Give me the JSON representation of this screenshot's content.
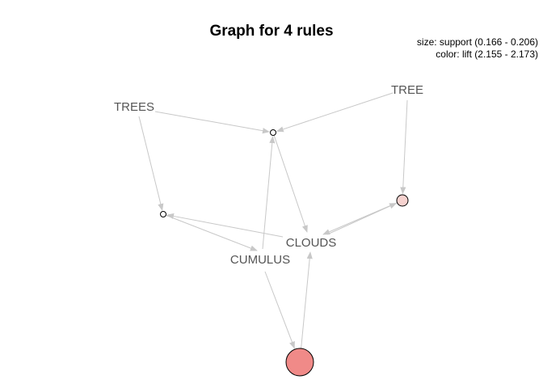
{
  "title": "Graph for 4 rules",
  "legend": {
    "size": "size: support (0.166 - 0.206)",
    "color": "color: lift (2.155 - 2.173)"
  },
  "colors": {
    "edge": "#c8c8c8",
    "label": "#555555",
    "rule_low_lift": "#f6d2cf",
    "rule_high_lift": "#f08a88",
    "rule_tiny": "#ffffff",
    "node_border": "#000000"
  },
  "items": [
    {
      "id": "TREES",
      "label": "TREES"
    },
    {
      "id": "TREE",
      "label": "TREE"
    },
    {
      "id": "CLOUDS",
      "label": "CLOUDS"
    },
    {
      "id": "CUMULUS",
      "label": "CUMULUS"
    }
  ],
  "rules": [
    {
      "id": "rule1",
      "lhs": [
        "TREES",
        "TREE",
        "CUMULUS"
      ],
      "rhs": [
        "CLOUDS"
      ]
    },
    {
      "id": "rule2",
      "lhs": [
        "TREES",
        "CLOUDS"
      ],
      "rhs": [
        "CUMULUS"
      ]
    },
    {
      "id": "rule3",
      "lhs": [
        "TREE",
        "CLOUDS"
      ],
      "rhs": [
        "CUMULUS"
      ]
    },
    {
      "id": "rule4",
      "lhs": [
        "CUMULUS"
      ],
      "rhs": [
        "CLOUDS"
      ]
    }
  ]
}
